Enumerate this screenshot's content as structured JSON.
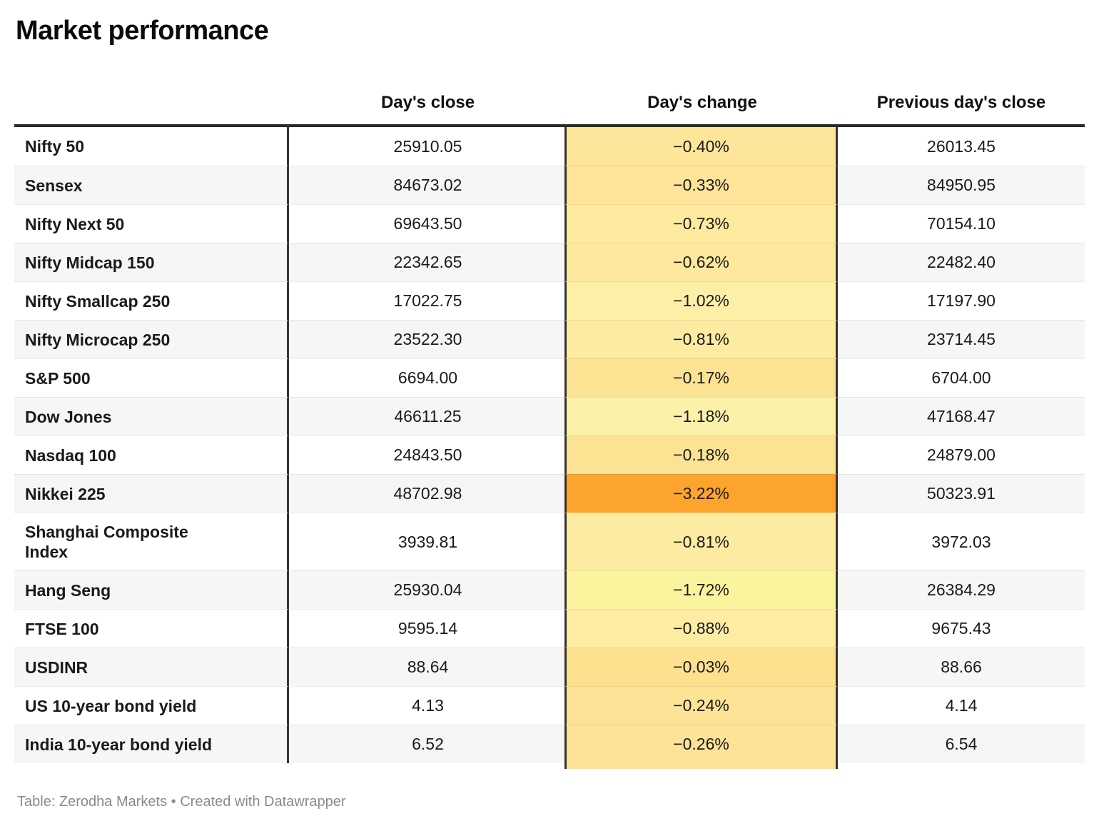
{
  "title": "Market performance",
  "columns": {
    "label": "",
    "close": "Day's close",
    "change": "Day's change",
    "prev": "Previous day's close"
  },
  "footer": "Table: Zerodha Markets • Created with Datawrapper",
  "colors": {
    "header_rule": "#2b2b2b",
    "column_divider": "#333333",
    "alt_row_bg": "#f6f6f6",
    "footer_text": "#8a8a8a",
    "worst_cell": "#FCA42E"
  },
  "rows": [
    {
      "name": "Nifty 50",
      "close": "25910.05",
      "change": "−0.40%",
      "prev": "26013.45",
      "color": "#FDE59A"
    },
    {
      "name": "Sensex",
      "close": "84673.02",
      "change": "−0.33%",
      "prev": "84950.95",
      "color": "#FDE498"
    },
    {
      "name": "Nifty Next 50",
      "close": "69643.50",
      "change": "−0.73%",
      "prev": "70154.10",
      "color": "#FDEA9F"
    },
    {
      "name": "Nifty Midcap 150",
      "close": "22342.65",
      "change": "−0.62%",
      "prev": "22482.40",
      "color": "#FDE89D"
    },
    {
      "name": "Nifty Smallcap 250",
      "close": "17022.75",
      "change": "−1.02%",
      "prev": "17197.90",
      "color": "#FDEFA6"
    },
    {
      "name": "Nifty Microcap 250",
      "close": "23522.30",
      "change": "−0.81%",
      "prev": "23714.45",
      "color": "#FDEBA1"
    },
    {
      "name": "S&P 500",
      "close": "6694.00",
      "change": "−0.17%",
      "prev": "6704.00",
      "color": "#FCE293"
    },
    {
      "name": "Dow Jones",
      "close": "46611.25",
      "change": "−1.18%",
      "prev": "47168.47",
      "color": "#FCF1A9"
    },
    {
      "name": "Nasdaq 100",
      "close": "24843.50",
      "change": "−0.18%",
      "prev": "24879.00",
      "color": "#FCE293"
    },
    {
      "name": "Nikkei 225",
      "close": "48702.98",
      "change": "−3.22%",
      "prev": "50323.91",
      "color": "#FCA42E"
    },
    {
      "name": "Shanghai Composite\nIndex",
      "close": "3939.81",
      "change": "−0.81%",
      "prev": "3972.03",
      "color": "#FDEBA1"
    },
    {
      "name": "Hang Seng",
      "close": "25930.04",
      "change": "−1.72%",
      "prev": "26384.29",
      "color": "#FBF49F"
    },
    {
      "name": "FTSE 100",
      "close": "9595.14",
      "change": "−0.88%",
      "prev": "9675.43",
      "color": "#FDECA2"
    },
    {
      "name": "USDINR",
      "close": "88.64",
      "change": "−0.03%",
      "prev": "88.66",
      "color": "#FDE18F"
    },
    {
      "name": "US 10-year bond yield",
      "close": "4.13",
      "change": "−0.24%",
      "prev": "4.14",
      "color": "#FDE396"
    },
    {
      "name": "India 10-year bond yield",
      "close": "6.52",
      "change": "−0.26%",
      "prev": "6.54",
      "color": "#FDE397"
    }
  ],
  "chart_data": {
    "type": "table",
    "title": "Market performance",
    "columns": [
      "",
      "Day's close",
      "Day's change",
      "Previous day's close"
    ],
    "rows": [
      [
        "Nifty 50",
        25910.05,
        -0.4,
        26013.45
      ],
      [
        "Sensex",
        84673.02,
        -0.33,
        84950.95
      ],
      [
        "Nifty Next 50",
        69643.5,
        -0.73,
        70154.1
      ],
      [
        "Nifty Midcap 150",
        22342.65,
        -0.62,
        22482.4
      ],
      [
        "Nifty Smallcap 250",
        17022.75,
        -1.02,
        17197.9
      ],
      [
        "Nifty Microcap 250",
        23522.3,
        -0.81,
        23714.45
      ],
      [
        "S&P 500",
        6694.0,
        -0.17,
        6704.0
      ],
      [
        "Dow Jones",
        46611.25,
        -1.18,
        47168.47
      ],
      [
        "Nasdaq 100",
        24843.5,
        -0.18,
        24879.0
      ],
      [
        "Nikkei 225",
        48702.98,
        -3.22,
        50323.91
      ],
      [
        "Shanghai Composite Index",
        3939.81,
        -0.81,
        3972.03
      ],
      [
        "Hang Seng",
        25930.04,
        -1.72,
        26384.29
      ],
      [
        "FTSE 100",
        9595.14,
        -0.88,
        9675.43
      ],
      [
        "USDINR",
        88.64,
        -0.03,
        88.66
      ],
      [
        "US 10-year bond yield",
        4.13,
        -0.24,
        4.14
      ],
      [
        "India 10-year bond yield",
        6.52,
        -0.26,
        6.54
      ]
    ],
    "notes": "Day's change column is heat-shaded; −3.22% (Nikkei 225) is deep orange, values near −1.7% palest yellow, values near 0% warm yellow",
    "source": "Table: Zerodha Markets • Created with Datawrapper"
  }
}
